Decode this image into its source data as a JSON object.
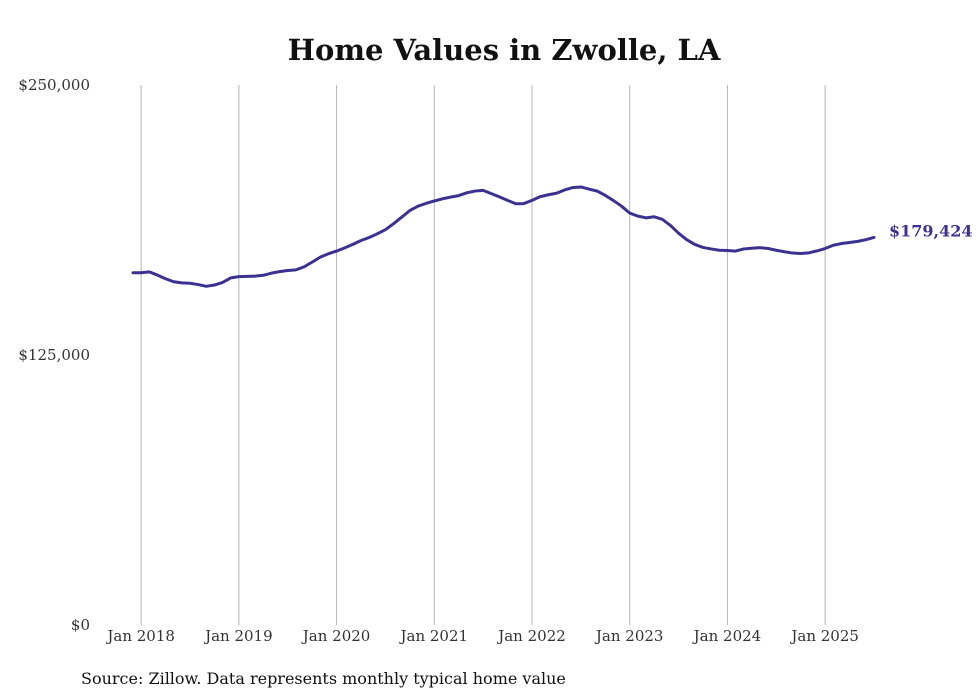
{
  "chart_data": {
    "type": "line",
    "title": "Home Values in Zwolle, LA",
    "xlabel": "",
    "ylabel": "",
    "x_range": [
      "2017-12",
      "2025-07"
    ],
    "ylim": [
      0,
      250000
    ],
    "y_ticks": [
      0,
      125000,
      250000
    ],
    "y_tick_labels": [
      "$0",
      "$125,000",
      "$250,000"
    ],
    "x_ticks": [
      "2018-01",
      "2019-01",
      "2020-01",
      "2021-01",
      "2022-01",
      "2023-01",
      "2024-01",
      "2025-01"
    ],
    "x_tick_labels": [
      "Jan 2018",
      "Jan 2019",
      "Jan 2020",
      "Jan 2021",
      "Jan 2022",
      "Jan 2023",
      "Jan 2024",
      "Jan 2025"
    ],
    "grid": "vertical",
    "line_color": "#3b3190",
    "end_label": "$179,424",
    "series": [
      {
        "points": [
          [
            "2017-12",
            163100
          ],
          [
            "2018-01",
            163100
          ],
          [
            "2018-02",
            163500
          ],
          [
            "2018-03",
            162000
          ],
          [
            "2018-04",
            160300
          ],
          [
            "2018-05",
            158900
          ],
          [
            "2018-06",
            158400
          ],
          [
            "2018-07",
            158200
          ],
          [
            "2018-08",
            157600
          ],
          [
            "2018-09",
            156800
          ],
          [
            "2018-10",
            157400
          ],
          [
            "2018-11",
            158600
          ],
          [
            "2018-12",
            160700
          ],
          [
            "2019-01",
            161300
          ],
          [
            "2019-02",
            161400
          ],
          [
            "2019-03",
            161500
          ],
          [
            "2019-04",
            161900
          ],
          [
            "2019-05",
            162900
          ],
          [
            "2019-06",
            163600
          ],
          [
            "2019-07",
            164100
          ],
          [
            "2019-08",
            164400
          ],
          [
            "2019-09",
            165800
          ],
          [
            "2019-10",
            168000
          ],
          [
            "2019-11",
            170300
          ],
          [
            "2019-12",
            171900
          ],
          [
            "2020-01",
            173100
          ],
          [
            "2020-02",
            174600
          ],
          [
            "2020-03",
            176200
          ],
          [
            "2020-04",
            178000
          ],
          [
            "2020-05",
            179400
          ],
          [
            "2020-06",
            181100
          ],
          [
            "2020-07",
            183000
          ],
          [
            "2020-08",
            185800
          ],
          [
            "2020-09",
            188800
          ],
          [
            "2020-10",
            191900
          ],
          [
            "2020-11",
            193900
          ],
          [
            "2020-12",
            195200
          ],
          [
            "2021-01",
            196300
          ],
          [
            "2021-02",
            197300
          ],
          [
            "2021-03",
            198100
          ],
          [
            "2021-04",
            198800
          ],
          [
            "2021-05",
            200100
          ],
          [
            "2021-06",
            200900
          ],
          [
            "2021-07",
            201200
          ],
          [
            "2021-08",
            199700
          ],
          [
            "2021-09",
            198200
          ],
          [
            "2021-10",
            196600
          ],
          [
            "2021-11",
            195000
          ],
          [
            "2021-12",
            195100
          ],
          [
            "2022-01",
            196600
          ],
          [
            "2022-02",
            198300
          ],
          [
            "2022-03",
            199200
          ],
          [
            "2022-04",
            199900
          ],
          [
            "2022-05",
            201400
          ],
          [
            "2022-06",
            202500
          ],
          [
            "2022-07",
            202800
          ],
          [
            "2022-08",
            201800
          ],
          [
            "2022-09",
            200900
          ],
          [
            "2022-10",
            198900
          ],
          [
            "2022-11",
            196500
          ],
          [
            "2022-12",
            193900
          ],
          [
            "2023-01",
            190700
          ],
          [
            "2023-02",
            189300
          ],
          [
            "2023-03",
            188500
          ],
          [
            "2023-04",
            189000
          ],
          [
            "2023-05",
            187800
          ],
          [
            "2023-06",
            185000
          ],
          [
            "2023-07",
            181400
          ],
          [
            "2023-08",
            178400
          ],
          [
            "2023-09",
            176200
          ],
          [
            "2023-10",
            174800
          ],
          [
            "2023-11",
            174100
          ],
          [
            "2023-12",
            173500
          ],
          [
            "2024-01",
            173400
          ],
          [
            "2024-02",
            173100
          ],
          [
            "2024-03",
            174100
          ],
          [
            "2024-04",
            174400
          ],
          [
            "2024-05",
            174700
          ],
          [
            "2024-06",
            174300
          ],
          [
            "2024-07",
            173500
          ],
          [
            "2024-08",
            172800
          ],
          [
            "2024-09",
            172200
          ],
          [
            "2024-10",
            172000
          ],
          [
            "2024-11",
            172300
          ],
          [
            "2024-12",
            173200
          ],
          [
            "2025-01",
            174300
          ],
          [
            "2025-02",
            175800
          ],
          [
            "2025-03",
            176600
          ],
          [
            "2025-04",
            177100
          ],
          [
            "2025-05",
            177600
          ],
          [
            "2025-06",
            178400
          ],
          [
            "2025-07",
            179424
          ]
        ]
      }
    ]
  },
  "footer": {
    "source_text": "Source: Zillow. Data represents monthly typical home value"
  }
}
